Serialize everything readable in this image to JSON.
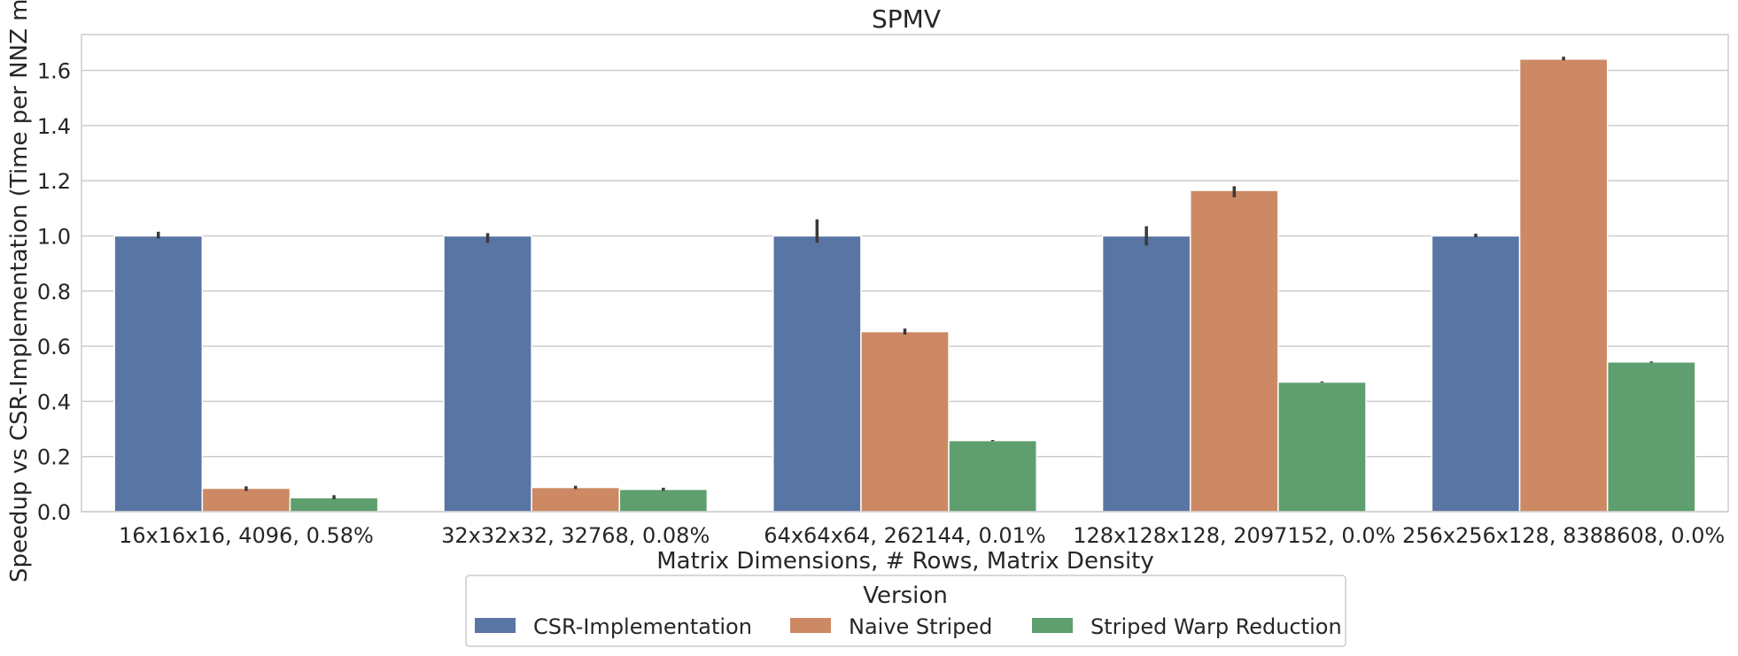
{
  "chart_data": {
    "type": "bar",
    "title": "SPMV",
    "xlabel": "Matrix Dimensions, # Rows, Matrix Density",
    "ylabel": "Speedup vs CSR-Implementation (Time per NNZ m",
    "ylim": [
      0,
      1.73
    ],
    "yticks": [
      0.0,
      0.2,
      0.4,
      0.6,
      0.8,
      1.0,
      1.2,
      1.4,
      1.6
    ],
    "ytick_labels": [
      "0.0",
      "0.2",
      "0.4",
      "0.6",
      "0.8",
      "1.0",
      "1.2",
      "1.4",
      "1.6"
    ],
    "grid": "horizontal",
    "categories": [
      "16x16x16, 4096, 0.58%",
      "32x32x32, 32768, 0.08%",
      "64x64x64, 262144, 0.01%",
      "128x128x128, 2097152, 0.0%",
      "256x256x128, 8388608, 0.0%"
    ],
    "series": [
      {
        "name": "CSR-Implementation",
        "color": "#5875a4",
        "values": [
          1.0,
          1.0,
          1.0,
          1.0,
          1.0
        ],
        "error_low": [
          0.99,
          0.975,
          0.975,
          0.965,
          0.995
        ],
        "error_high": [
          1.015,
          1.01,
          1.06,
          1.035,
          1.008
        ]
      },
      {
        "name": "Naive Striped",
        "color": "#cc8963",
        "values": [
          0.085,
          0.088,
          0.653,
          1.165,
          1.641
        ],
        "error_low": [
          0.075,
          0.082,
          0.642,
          1.14,
          1.636
        ],
        "error_high": [
          0.092,
          0.094,
          0.664,
          1.18,
          1.65
        ]
      },
      {
        "name": "Striped Warp Reduction",
        "color": "#5f9e6e",
        "values": [
          0.051,
          0.081,
          0.258,
          0.47,
          0.543
        ],
        "error_low": [
          0.045,
          0.076,
          0.256,
          0.468,
          0.541
        ],
        "error_high": [
          0.06,
          0.087,
          0.26,
          0.472,
          0.545
        ]
      }
    ],
    "legend": {
      "title": "Version",
      "placement": "bottom-center"
    }
  }
}
